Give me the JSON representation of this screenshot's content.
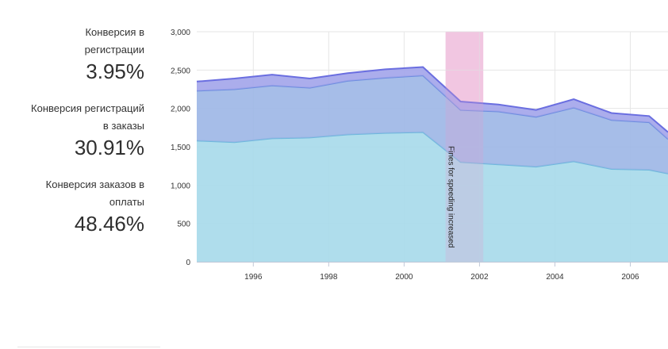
{
  "kpis": [
    {
      "label_line1": "Конверсия в",
      "label_line2": "регистрации",
      "value": "3.95%"
    },
    {
      "label_line1": "Конверсия регистраций",
      "label_line2": "в заказы",
      "value": "30.91%"
    },
    {
      "label_line1": "Конверсия заказов в",
      "label_line2": "оплаты",
      "value": "48.46%"
    }
  ],
  "chart_data": {
    "type": "area",
    "stacked": true,
    "x": [
      1994.5,
      1995.5,
      1996.5,
      1997.5,
      1998.5,
      1999.5,
      2000.5,
      2001.5,
      2002.5,
      2003.5,
      2004.5,
      2005.5,
      2006.5,
      2007.0
    ],
    "series": [
      {
        "values": [
          1580,
          1560,
          1610,
          1620,
          1660,
          1680,
          1690,
          1300,
          1270,
          1240,
          1310,
          1210,
          1200,
          1150
        ],
        "color": "#a6d9ea"
      },
      {
        "values": [
          650,
          690,
          690,
          650,
          700,
          720,
          740,
          680,
          690,
          650,
          700,
          640,
          620,
          450
        ],
        "color": "#9cb6e6"
      },
      {
        "values": [
          120,
          140,
          140,
          120,
          100,
          110,
          110,
          110,
          90,
          90,
          110,
          90,
          80,
          90
        ],
        "color": "#a2a4ea"
      }
    ],
    "xlim": [
      1994.5,
      2007.0
    ],
    "ylim": [
      0,
      3000
    ],
    "x_ticks": [
      1996,
      1998,
      2000,
      2002,
      2004,
      2006
    ],
    "y_ticks": [
      0,
      500,
      1000,
      1500,
      2000,
      2500,
      3000
    ],
    "y_tick_labels": [
      "0",
      "500",
      "1,000",
      "1,500",
      "2,000",
      "2,500",
      "3,000"
    ],
    "plot_band": {
      "from": 2001.1,
      "to": 2002.1,
      "label": "Fines for speeding increased",
      "color": "#f5d1e6"
    },
    "grid": true
  }
}
